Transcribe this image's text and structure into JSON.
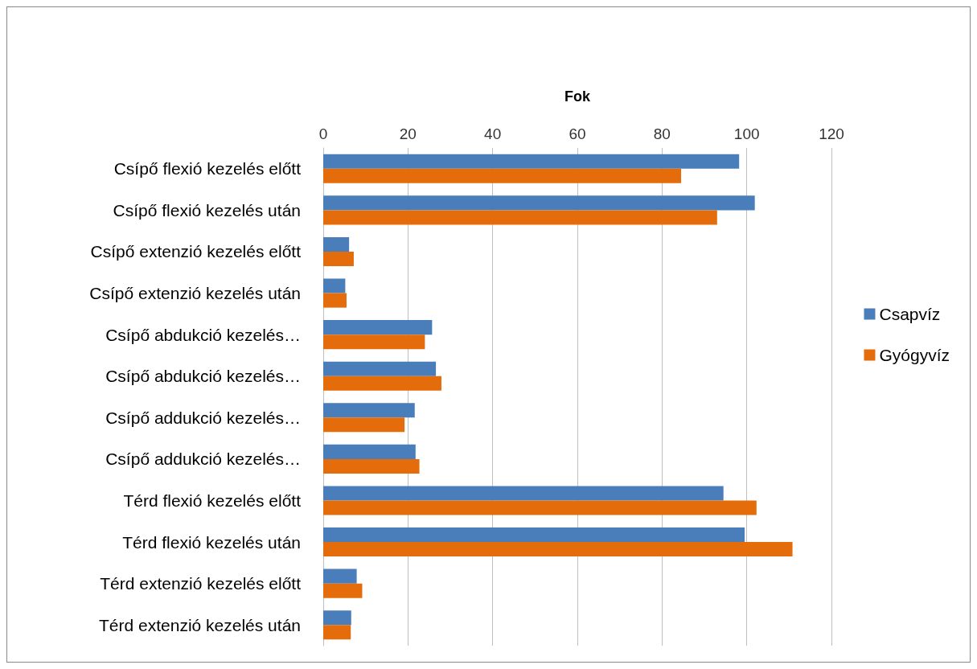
{
  "chart_data": {
    "type": "bar",
    "orientation": "horizontal",
    "xlabel": "Fok",
    "categories": [
      "Csípő flexió kezelés előtt",
      "Csípő flexió kezelés után",
      "Csípő extenzió kezelés előtt",
      "Csípő extenzió kezelés után",
      "Csípő abdukció kezelés…",
      "Csípő abdukció kezelés…",
      "Csípő addukció kezelés…",
      "Csípő addukció kezelés…",
      "Térd flexió kezelés előtt",
      "Térd flexió kezelés után",
      "Térd extenzió kezelés előtt",
      "Térd extenzió kezelés után"
    ],
    "series": [
      {
        "name": "Csapvíz",
        "color": "#4a7ebb",
        "values": [
          98.2,
          101.9,
          6.1,
          5.2,
          25.7,
          26.6,
          21.6,
          21.8,
          94.5,
          99.5,
          7.9,
          6.6
        ]
      },
      {
        "name": "Gyógyvíz",
        "color": "#e46c0a",
        "values": [
          84.5,
          93,
          7.2,
          5.5,
          24,
          27.9,
          19.2,
          22.7,
          102.3,
          110.8,
          9.2,
          6.5
        ]
      }
    ],
    "xlim": [
      0,
      120
    ],
    "xticks": [
      0,
      20,
      40,
      60,
      80,
      100,
      120
    ],
    "grid": "x",
    "legend": "right"
  }
}
